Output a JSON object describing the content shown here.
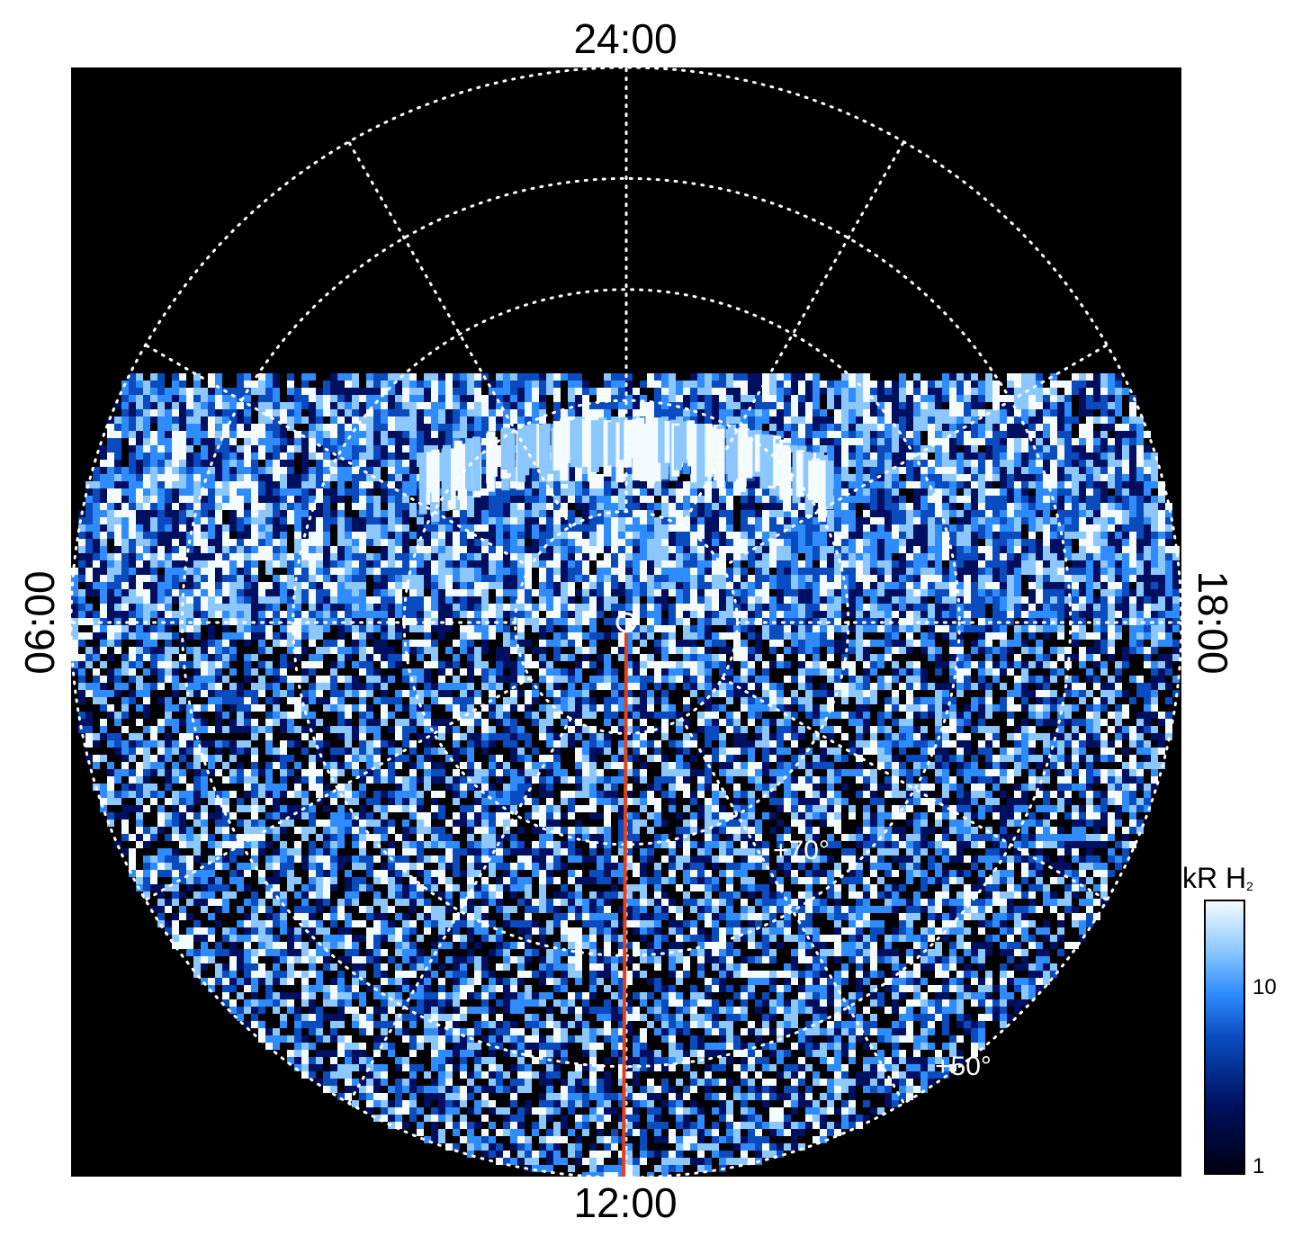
{
  "chart_data": {
    "type": "heatmap",
    "projection": "polar",
    "local_time_labels": {
      "top": "24:00",
      "bottom": "12:00",
      "left": "06:00",
      "right": "18:00"
    },
    "latitude_labels": [
      "+70°",
      "+50°"
    ],
    "latitude_circles_deg": [
      80,
      70,
      60,
      50,
      40
    ],
    "meridian_step_hours": 2,
    "colorbar": {
      "title": "kR H",
      "title_subscript": "2",
      "scale": "log",
      "range": [
        1,
        30
      ],
      "tick_labels": [
        "10",
        "1"
      ],
      "colors": [
        "#000010",
        "#001060",
        "#0a4cc0",
        "#2f8cff",
        "#8cc8ff",
        "#f4fbff"
      ]
    },
    "features": [
      {
        "name": "main auroral oval",
        "description": "bright band near 75° latitude on the nightside (toward 24:00)"
      },
      {
        "name": "noise field",
        "description": "speckled emission covering dayside hemisphere"
      },
      {
        "name": "noon meridian",
        "color": "#e0421b"
      }
    ],
    "grid_color": "#ffffff",
    "background": "#000000"
  }
}
